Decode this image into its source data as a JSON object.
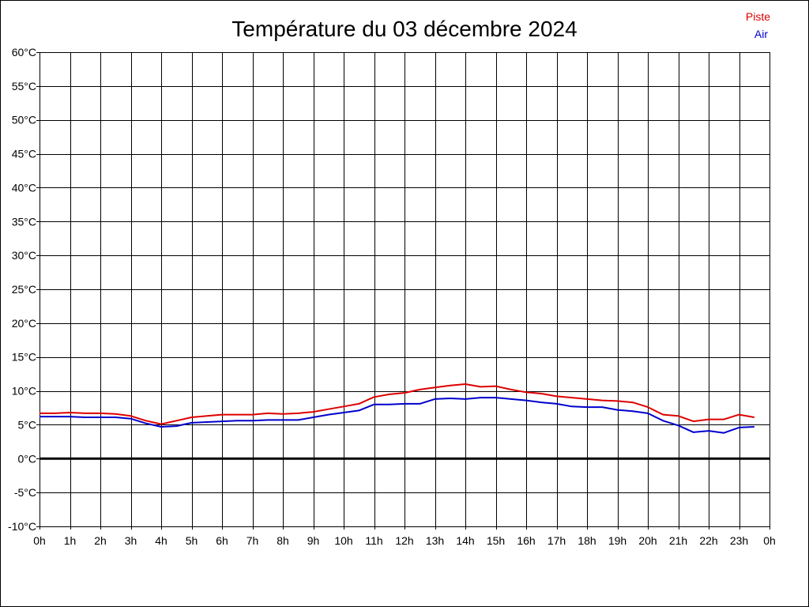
{
  "chart_data": {
    "type": "line",
    "title": "Température du 03 décembre 2024",
    "xlabel": "",
    "ylabel": "",
    "x_tick_labels": [
      "0h",
      "1h",
      "2h",
      "3h",
      "4h",
      "5h",
      "6h",
      "7h",
      "8h",
      "9h",
      "10h",
      "11h",
      "12h",
      "13h",
      "14h",
      "15h",
      "16h",
      "17h",
      "18h",
      "19h",
      "20h",
      "21h",
      "22h",
      "23h",
      "0h"
    ],
    "y_tick_labels": [
      "60°C",
      "55°C",
      "50°C",
      "45°C",
      "40°C",
      "35°C",
      "30°C",
      "25°C",
      "20°C",
      "15°C",
      "10°C",
      "5°C",
      "0°C",
      "-5°C",
      "-10°C"
    ],
    "xlim": [
      0,
      24
    ],
    "ylim": [
      -10,
      60
    ],
    "y_step": 5,
    "grid": true,
    "zero_line": true,
    "legend": {
      "position": "top-right"
    },
    "series": [
      {
        "name": "Piste",
        "color": "#dd0000",
        "x": [
          0,
          0.5,
          1,
          1.5,
          2,
          2.5,
          3,
          3.5,
          4,
          4.5,
          5,
          5.5,
          6,
          6.5,
          7,
          7.5,
          8,
          8.5,
          9,
          9.5,
          10,
          10.5,
          11,
          11.5,
          12,
          12.5,
          13,
          13.5,
          14,
          14.5,
          15,
          15.5,
          16,
          16.5,
          17,
          17.5,
          18,
          18.5,
          19,
          19.5,
          20,
          20.5,
          21,
          21.5,
          22,
          22.5,
          23,
          23.5
        ],
        "y": [
          6.7,
          6.7,
          6.8,
          6.7,
          6.7,
          6.6,
          6.3,
          5.6,
          5.1,
          5.6,
          6.1,
          6.3,
          6.5,
          6.5,
          6.5,
          6.7,
          6.6,
          6.7,
          6.9,
          7.3,
          7.7,
          8.1,
          9.1,
          9.5,
          9.7,
          10.2,
          10.5,
          10.8,
          11.0,
          10.6,
          10.7,
          10.2,
          9.8,
          9.6,
          9.2,
          9.0,
          8.8,
          8.6,
          8.5,
          8.3,
          7.6,
          6.5,
          6.3,
          5.5,
          5.8,
          5.8,
          6.5,
          6.1
        ]
      },
      {
        "name": "Air",
        "color": "#0000cc",
        "x": [
          0,
          0.5,
          1,
          1.5,
          2,
          2.5,
          3,
          3.5,
          4,
          4.5,
          5,
          5.5,
          6,
          6.5,
          7,
          7.5,
          8,
          8.5,
          9,
          9.5,
          10,
          10.5,
          11,
          11.5,
          12,
          12.5,
          13,
          13.5,
          14,
          14.5,
          15,
          15.5,
          16,
          16.5,
          17,
          17.5,
          18,
          18.5,
          19,
          19.5,
          20,
          20.5,
          21,
          21.5,
          22,
          22.5,
          23,
          23.5
        ],
        "y": [
          6.2,
          6.2,
          6.2,
          6.1,
          6.1,
          6.1,
          5.9,
          5.2,
          4.7,
          4.8,
          5.3,
          5.4,
          5.5,
          5.6,
          5.6,
          5.7,
          5.7,
          5.7,
          6.1,
          6.5,
          6.8,
          7.1,
          8.0,
          8.0,
          8.1,
          8.1,
          8.8,
          8.9,
          8.8,
          9.0,
          9.0,
          8.8,
          8.6,
          8.3,
          8.1,
          7.7,
          7.6,
          7.6,
          7.2,
          7.0,
          6.7,
          5.6,
          4.9,
          3.9,
          4.1,
          3.8,
          4.6,
          4.7
        ]
      }
    ]
  }
}
